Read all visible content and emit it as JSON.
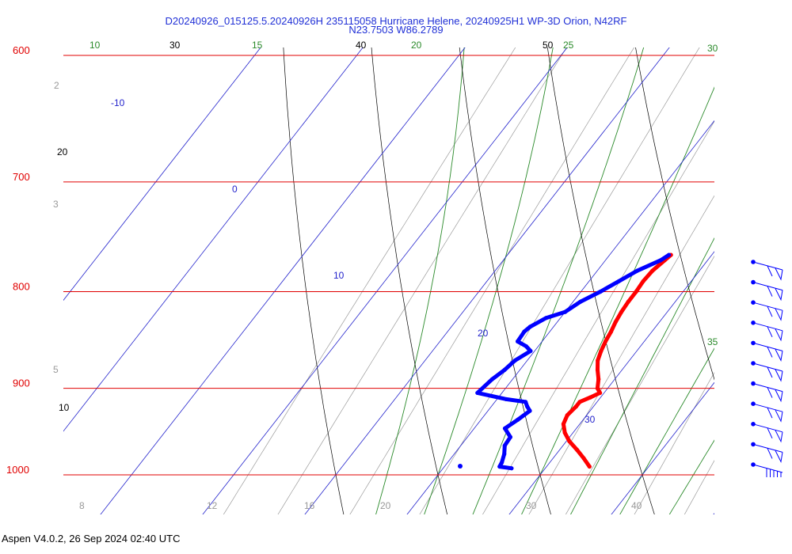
{
  "title": {
    "line1": "D20240926_015125.5.20240926H 235115058 Hurricane Helene, 20240925H1 WP-3D Orion, N42RF",
    "line2": "N23.7503 W86.2789"
  },
  "footer": "Aspen V4.0.2, 26 Sep 2024  02:40 UTC",
  "colors": {
    "isobar": "#e00000",
    "isotherm": "#000000",
    "dry_adiabat": "#000000",
    "moist_adiabat": "#2a8a2a",
    "mixing_ratio": "#999999",
    "isotherm_blue": "#2222cc",
    "temperature": "#ff0000",
    "dewpoint": "#0000ff"
  },
  "chart_data": {
    "type": "skew-t",
    "pressure_range": [
      1000,
      600
    ],
    "isobars": [
      {
        "p": 600,
        "label": "600"
      },
      {
        "p": 700,
        "label": "700"
      },
      {
        "p": 800,
        "label": "800"
      },
      {
        "p": 900,
        "label": "900"
      },
      {
        "p": 1000,
        "label": "1000"
      }
    ],
    "isotherm_labels": [
      "-10",
      "0",
      "10",
      "20",
      "30"
    ],
    "dry_adiabat_labels": [
      "30",
      "40",
      "50",
      "20",
      "10"
    ],
    "moist_adiabat_labels": [
      "10",
      "15",
      "20",
      "25",
      "30",
      "35"
    ],
    "mixing_ratio_left_labels": [
      "2",
      "3",
      "5"
    ],
    "mixing_ratio_bottom_labels": [
      "8",
      "12",
      "16",
      "20",
      "30",
      "40"
    ],
    "temperature_profile": [
      {
        "p": 765,
        "t": 16.0
      },
      {
        "p": 770,
        "t": 15.8
      },
      {
        "p": 780,
        "t": 15.4
      },
      {
        "p": 790,
        "t": 15.3
      },
      {
        "p": 800,
        "t": 15.4
      },
      {
        "p": 810,
        "t": 15.4
      },
      {
        "p": 820,
        "t": 15.5
      },
      {
        "p": 830,
        "t": 15.7
      },
      {
        "p": 840,
        "t": 16.0
      },
      {
        "p": 850,
        "t": 16.2
      },
      {
        "p": 860,
        "t": 16.5
      },
      {
        "p": 870,
        "t": 16.9
      },
      {
        "p": 880,
        "t": 17.6
      },
      {
        "p": 890,
        "t": 18.4
      },
      {
        "p": 900,
        "t": 19.0
      },
      {
        "p": 905,
        "t": 19.6
      },
      {
        "p": 910,
        "t": 19.0
      },
      {
        "p": 915,
        "t": 18.3
      },
      {
        "p": 920,
        "t": 18.3
      },
      {
        "p": 930,
        "t": 18.1
      },
      {
        "p": 940,
        "t": 18.4
      },
      {
        "p": 950,
        "t": 19.2
      },
      {
        "p": 960,
        "t": 20.3
      },
      {
        "p": 970,
        "t": 21.7
      },
      {
        "p": 980,
        "t": 23.0
      },
      {
        "p": 990,
        "t": 24.2
      }
    ],
    "dewpoint_profile": [
      {
        "p": 765,
        "t": 15.8
      },
      {
        "p": 770,
        "t": 15.4
      },
      {
        "p": 780,
        "t": 13.9
      },
      {
        "p": 790,
        "t": 12.9
      },
      {
        "p": 800,
        "t": 11.9
      },
      {
        "p": 810,
        "t": 10.7
      },
      {
        "p": 820,
        "t": 10.0
      },
      {
        "p": 826,
        "t": 8.6
      },
      {
        "p": 835,
        "t": 7.7
      },
      {
        "p": 840,
        "t": 7.5
      },
      {
        "p": 850,
        "t": 7.6
      },
      {
        "p": 855,
        "t": 8.8
      },
      {
        "p": 860,
        "t": 9.6
      },
      {
        "p": 870,
        "t": 8.8
      },
      {
        "p": 880,
        "t": 8.5
      },
      {
        "p": 890,
        "t": 8.0
      },
      {
        "p": 905,
        "t": 7.6
      },
      {
        "p": 912,
        "t": 10.9
      },
      {
        "p": 915,
        "t": 13.0
      },
      {
        "p": 920,
        "t": 13.5
      },
      {
        "p": 925,
        "t": 14.1
      },
      {
        "p": 935,
        "t": 13.6
      },
      {
        "p": 945,
        "t": 13.0
      },
      {
        "p": 955,
        "t": 14.2
      },
      {
        "p": 965,
        "t": 14.3
      },
      {
        "p": 975,
        "t": 14.9
      },
      {
        "p": 985,
        "t": 15.3
      },
      {
        "p": 990,
        "t": 15.4
      },
      {
        "p": 992,
        "t": 16.7
      }
    ],
    "wind_barb_count": 11
  }
}
